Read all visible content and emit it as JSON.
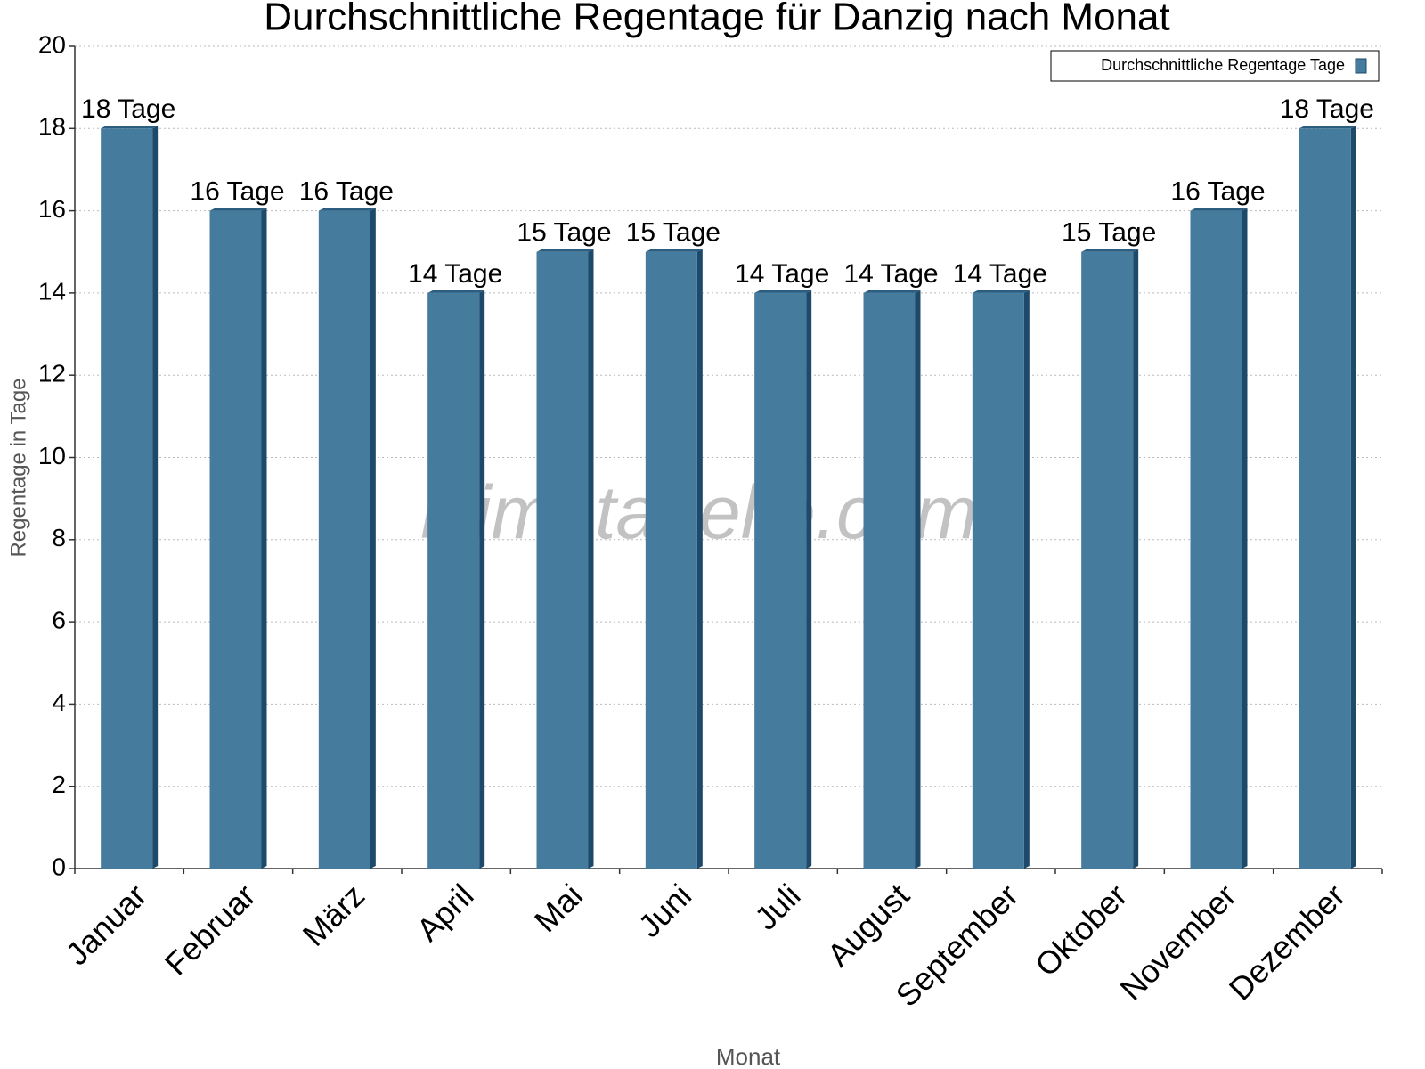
{
  "chart_data": {
    "type": "bar",
    "title": "Durchschnittliche Regentage für Danzig nach Monat",
    "x_label": "Monat",
    "y_label": "Regentage in Tage",
    "watermark": "klimatabelle.com",
    "categories": [
      "Januar",
      "Februar",
      "März",
      "April",
      "Mai",
      "Juni",
      "Juli",
      "August",
      "September",
      "Oktober",
      "November",
      "Dezember"
    ],
    "series": [
      {
        "name": "Durchschnittliche Regentage Tage",
        "color": "#457b9c",
        "values": [
          18,
          16,
          16,
          14,
          15,
          15,
          14,
          14,
          14,
          15,
          16,
          18
        ],
        "value_labels": [
          "18 Tage",
          "16 Tage",
          "16 Tage",
          "14 Tage",
          "15 Tage",
          "15 Tage",
          "14 Tage",
          "14 Tage",
          "14 Tage",
          "15 Tage",
          "16 Tage",
          "18 Tage"
        ]
      }
    ],
    "ylim": [
      0,
      20
    ],
    "yticks": [
      0,
      2,
      4,
      6,
      8,
      10,
      12,
      14,
      16,
      18,
      20
    ],
    "grid": true,
    "legend": "top-right"
  }
}
